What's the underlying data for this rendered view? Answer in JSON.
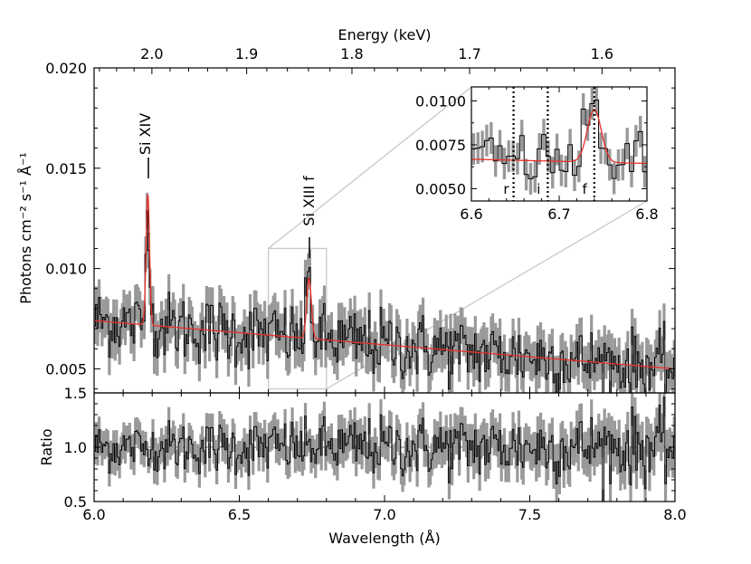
{
  "chart_data": [
    {
      "panel": "main-spectrum",
      "type": "line",
      "xlabel": "Wavelength (Å)",
      "ylabel": "Photons cm⁻² s⁻¹ Å⁻¹",
      "x2label": "Energy (keV)",
      "xlim": [
        6.0,
        8.0
      ],
      "ylim": [
        0.0038,
        0.02
      ],
      "y_ticks": [
        0.005,
        0.01,
        0.015,
        0.02
      ],
      "y_tick_labels": [
        "0.005",
        "0.010",
        "0.015",
        "0.020"
      ],
      "energy_ticks_keV": [
        2.0,
        1.9,
        1.8,
        1.7,
        1.6
      ],
      "energy_tick_labels": [
        "2.0",
        "1.9",
        "1.8",
        "1.7",
        "1.6"
      ],
      "continuum": {
        "start": [
          6.0,
          0.0074
        ],
        "end": [
          8.0,
          0.005
        ]
      },
      "lines": [
        {
          "name": "Si XIV",
          "center": 6.185,
          "sigma": 0.006,
          "amplitude": 0.0065
        },
        {
          "name": "Si XIII f",
          "center": 6.74,
          "sigma": 0.008,
          "amplitude": 0.003
        }
      ],
      "annotations": [
        "Si XIV",
        "Si XIII f"
      ],
      "series": [
        {
          "name": "data",
          "color": "#000000",
          "errorbar_color": "#999999"
        },
        {
          "name": "model",
          "color": "#e8302a"
        }
      ]
    },
    {
      "panel": "ratio",
      "type": "line",
      "ylabel": "Ratio",
      "xlim": [
        6.0,
        8.0
      ],
      "ylim": [
        0.5,
        1.5
      ],
      "y_ticks": [
        0.5,
        1.0,
        1.5
      ],
      "y_tick_labels": [
        "0.5",
        "1.0",
        "1.5"
      ],
      "x_ticks": [
        6.0,
        6.5,
        7.0,
        7.5,
        8.0
      ],
      "x_tick_labels": [
        "6.0",
        "6.5",
        "7.0",
        "7.5",
        "8.0"
      ],
      "reference_line": 1.0
    },
    {
      "panel": "inset-zoom",
      "type": "line",
      "xlim": [
        6.6,
        6.8
      ],
      "ylim": [
        0.0043,
        0.0108
      ],
      "x_ticks": [
        6.6,
        6.7,
        6.8
      ],
      "x_tick_labels": [
        "6.6",
        "6.7",
        "6.8"
      ],
      "y_ticks": [
        0.005,
        0.0075,
        0.01
      ],
      "y_tick_labels": [
        "0.0050",
        "0.0075",
        "0.0100"
      ],
      "markers": [
        {
          "label": "r",
          "x": 6.648
        },
        {
          "label": "i",
          "x": 6.687
        },
        {
          "label": "f",
          "x": 6.74
        }
      ],
      "zoom_region": {
        "x": [
          6.6,
          6.8
        ],
        "y": [
          0.004,
          0.011
        ]
      }
    }
  ],
  "labels": {
    "energy_axis": "Energy (keV)",
    "wavelength_axis": "Wavelength (Å)",
    "flux_axis": "Photons cm⁻² s⁻¹ Å⁻¹",
    "ratio_axis": "Ratio",
    "si14": "Si XIV",
    "si13f": "Si XIII f"
  },
  "colors": {
    "data": "#000000",
    "errorbar": "#999999",
    "model": "#e8302a",
    "zoom_box": "#c8c8c8"
  }
}
